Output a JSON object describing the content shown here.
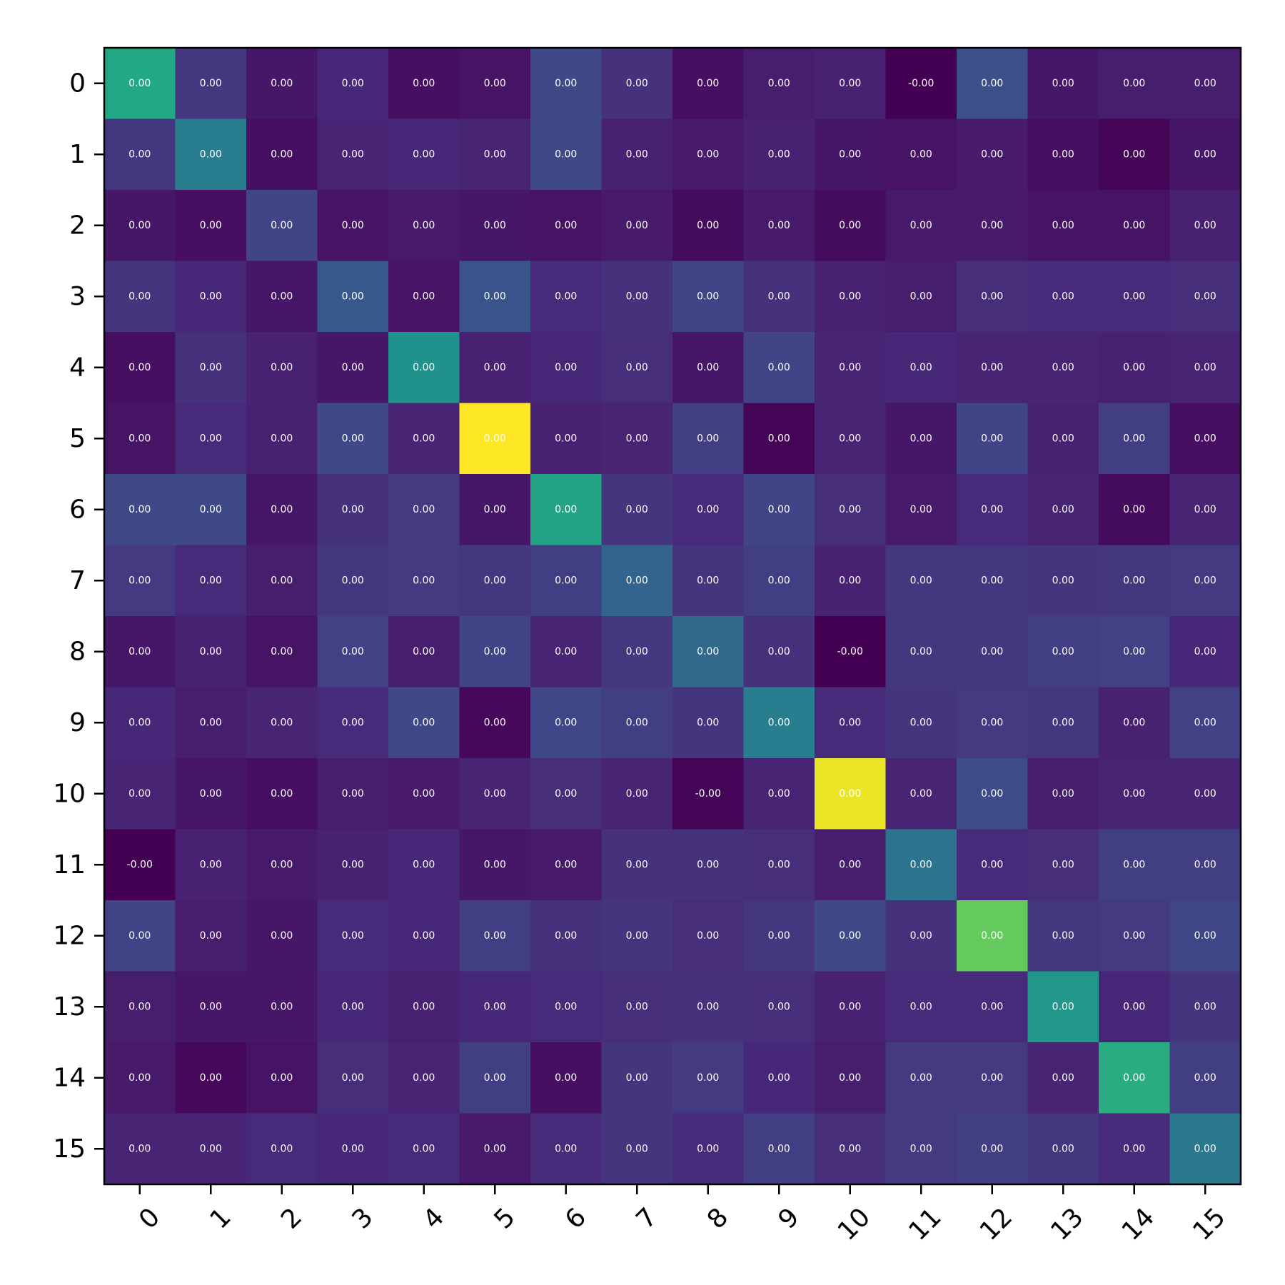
{
  "chart_data": {
    "type": "heatmap",
    "title": "",
    "xlabel": "",
    "ylabel": "",
    "x_categories": [
      "0",
      "1",
      "2",
      "3",
      "4",
      "5",
      "6",
      "7",
      "8",
      "9",
      "10",
      "11",
      "12",
      "13",
      "14",
      "15"
    ],
    "y_categories": [
      "0",
      "1",
      "2",
      "3",
      "4",
      "5",
      "6",
      "7",
      "8",
      "9",
      "10",
      "11",
      "12",
      "13",
      "14",
      "15"
    ],
    "colormap": "viridis",
    "grid": false,
    "legend": "none",
    "intensity": [
      [
        0.6,
        0.16,
        0.06,
        0.11,
        0.04,
        0.05,
        0.22,
        0.14,
        0.04,
        0.08,
        0.09,
        0.0,
        0.24,
        0.06,
        0.08,
        0.08
      ],
      [
        0.16,
        0.42,
        0.04,
        0.1,
        0.11,
        0.1,
        0.22,
        0.09,
        0.07,
        0.09,
        0.06,
        0.05,
        0.07,
        0.04,
        0.01,
        0.06
      ],
      [
        0.06,
        0.04,
        0.2,
        0.05,
        0.07,
        0.06,
        0.05,
        0.07,
        0.03,
        0.07,
        0.03,
        0.07,
        0.07,
        0.05,
        0.05,
        0.09
      ],
      [
        0.15,
        0.11,
        0.06,
        0.28,
        0.05,
        0.26,
        0.12,
        0.14,
        0.2,
        0.14,
        0.09,
        0.08,
        0.13,
        0.12,
        0.12,
        0.13
      ],
      [
        0.04,
        0.14,
        0.09,
        0.06,
        0.5,
        0.09,
        0.11,
        0.13,
        0.06,
        0.2,
        0.1,
        0.11,
        0.1,
        0.1,
        0.09,
        0.1
      ],
      [
        0.05,
        0.12,
        0.09,
        0.22,
        0.1,
        1.0,
        0.09,
        0.1,
        0.18,
        0.01,
        0.1,
        0.06,
        0.2,
        0.09,
        0.18,
        0.04
      ],
      [
        0.22,
        0.22,
        0.06,
        0.14,
        0.17,
        0.06,
        0.58,
        0.15,
        0.12,
        0.2,
        0.13,
        0.07,
        0.12,
        0.1,
        0.03,
        0.1
      ],
      [
        0.17,
        0.12,
        0.08,
        0.16,
        0.17,
        0.16,
        0.18,
        0.32,
        0.15,
        0.18,
        0.09,
        0.16,
        0.16,
        0.15,
        0.16,
        0.17
      ],
      [
        0.06,
        0.09,
        0.05,
        0.19,
        0.08,
        0.2,
        0.1,
        0.16,
        0.34,
        0.14,
        0.0,
        0.16,
        0.16,
        0.18,
        0.19,
        0.11
      ],
      [
        0.11,
        0.08,
        0.1,
        0.12,
        0.22,
        0.02,
        0.21,
        0.18,
        0.15,
        0.42,
        0.12,
        0.15,
        0.17,
        0.16,
        0.09,
        0.19
      ],
      [
        0.1,
        0.06,
        0.04,
        0.08,
        0.07,
        0.1,
        0.13,
        0.1,
        0.01,
        0.1,
        0.97,
        0.1,
        0.23,
        0.08,
        0.1,
        0.1
      ],
      [
        0.0,
        0.09,
        0.07,
        0.09,
        0.11,
        0.06,
        0.07,
        0.14,
        0.14,
        0.13,
        0.08,
        0.38,
        0.12,
        0.13,
        0.18,
        0.18
      ],
      [
        0.2,
        0.08,
        0.06,
        0.12,
        0.11,
        0.18,
        0.14,
        0.15,
        0.13,
        0.16,
        0.22,
        0.14,
        0.76,
        0.16,
        0.17,
        0.21
      ],
      [
        0.08,
        0.06,
        0.06,
        0.11,
        0.09,
        0.11,
        0.12,
        0.13,
        0.14,
        0.13,
        0.09,
        0.12,
        0.12,
        0.52,
        0.11,
        0.15
      ],
      [
        0.07,
        0.02,
        0.05,
        0.13,
        0.1,
        0.18,
        0.04,
        0.15,
        0.17,
        0.11,
        0.08,
        0.17,
        0.17,
        0.1,
        0.62,
        0.18
      ],
      [
        0.1,
        0.1,
        0.12,
        0.11,
        0.12,
        0.07,
        0.12,
        0.15,
        0.12,
        0.18,
        0.13,
        0.17,
        0.18,
        0.16,
        0.12,
        0.4
      ]
    ],
    "labels": [
      [
        "0.00",
        "0.00",
        "0.00",
        "0.00",
        "0.00",
        "0.00",
        "0.00",
        "0.00",
        "0.00",
        "0.00",
        "0.00",
        "-0.00",
        "0.00",
        "0.00",
        "0.00",
        "0.00"
      ],
      [
        "0.00",
        "0.00",
        "0.00",
        "0.00",
        "0.00",
        "0.00",
        "0.00",
        "0.00",
        "0.00",
        "0.00",
        "0.00",
        "0.00",
        "0.00",
        "0.00",
        "0.00",
        "0.00"
      ],
      [
        "0.00",
        "0.00",
        "0.00",
        "0.00",
        "0.00",
        "0.00",
        "0.00",
        "0.00",
        "0.00",
        "0.00",
        "0.00",
        "0.00",
        "0.00",
        "0.00",
        "0.00",
        "0.00"
      ],
      [
        "0.00",
        "0.00",
        "0.00",
        "0.00",
        "0.00",
        "0.00",
        "0.00",
        "0.00",
        "0.00",
        "0.00",
        "0.00",
        "0.00",
        "0.00",
        "0.00",
        "0.00",
        "0.00"
      ],
      [
        "0.00",
        "0.00",
        "0.00",
        "0.00",
        "0.00",
        "0.00",
        "0.00",
        "0.00",
        "0.00",
        "0.00",
        "0.00",
        "0.00",
        "0.00",
        "0.00",
        "0.00",
        "0.00"
      ],
      [
        "0.00",
        "0.00",
        "0.00",
        "0.00",
        "0.00",
        "0.00",
        "0.00",
        "0.00",
        "0.00",
        "0.00",
        "0.00",
        "0.00",
        "0.00",
        "0.00",
        "0.00",
        "0.00"
      ],
      [
        "0.00",
        "0.00",
        "0.00",
        "0.00",
        "0.00",
        "0.00",
        "0.00",
        "0.00",
        "0.00",
        "0.00",
        "0.00",
        "0.00",
        "0.00",
        "0.00",
        "0.00",
        "0.00"
      ],
      [
        "0.00",
        "0.00",
        "0.00",
        "0.00",
        "0.00",
        "0.00",
        "0.00",
        "0.00",
        "0.00",
        "0.00",
        "0.00",
        "0.00",
        "0.00",
        "0.00",
        "0.00",
        "0.00"
      ],
      [
        "0.00",
        "0.00",
        "0.00",
        "0.00",
        "0.00",
        "0.00",
        "0.00",
        "0.00",
        "0.00",
        "0.00",
        "-0.00",
        "0.00",
        "0.00",
        "0.00",
        "0.00",
        "0.00"
      ],
      [
        "0.00",
        "0.00",
        "0.00",
        "0.00",
        "0.00",
        "0.00",
        "0.00",
        "0.00",
        "0.00",
        "0.00",
        "0.00",
        "0.00",
        "0.00",
        "0.00",
        "0.00",
        "0.00"
      ],
      [
        "0.00",
        "0.00",
        "0.00",
        "0.00",
        "0.00",
        "0.00",
        "0.00",
        "0.00",
        "-0.00",
        "0.00",
        "0.00",
        "0.00",
        "0.00",
        "0.00",
        "0.00",
        "0.00"
      ],
      [
        "-0.00",
        "0.00",
        "0.00",
        "0.00",
        "0.00",
        "0.00",
        "0.00",
        "0.00",
        "0.00",
        "0.00",
        "0.00",
        "0.00",
        "0.00",
        "0.00",
        "0.00",
        "0.00"
      ],
      [
        "0.00",
        "0.00",
        "0.00",
        "0.00",
        "0.00",
        "0.00",
        "0.00",
        "0.00",
        "0.00",
        "0.00",
        "0.00",
        "0.00",
        "0.00",
        "0.00",
        "0.00",
        "0.00"
      ],
      [
        "0.00",
        "0.00",
        "0.00",
        "0.00",
        "0.00",
        "0.00",
        "0.00",
        "0.00",
        "0.00",
        "0.00",
        "0.00",
        "0.00",
        "0.00",
        "0.00",
        "0.00",
        "0.00"
      ],
      [
        "0.00",
        "0.00",
        "0.00",
        "0.00",
        "0.00",
        "0.00",
        "0.00",
        "0.00",
        "0.00",
        "0.00",
        "0.00",
        "0.00",
        "0.00",
        "0.00",
        "0.00",
        "0.00"
      ],
      [
        "0.00",
        "0.00",
        "0.00",
        "0.00",
        "0.00",
        "0.00",
        "0.00",
        "0.00",
        "0.00",
        "0.00",
        "0.00",
        "0.00",
        "0.00",
        "0.00",
        "0.00",
        "0.00"
      ]
    ]
  }
}
